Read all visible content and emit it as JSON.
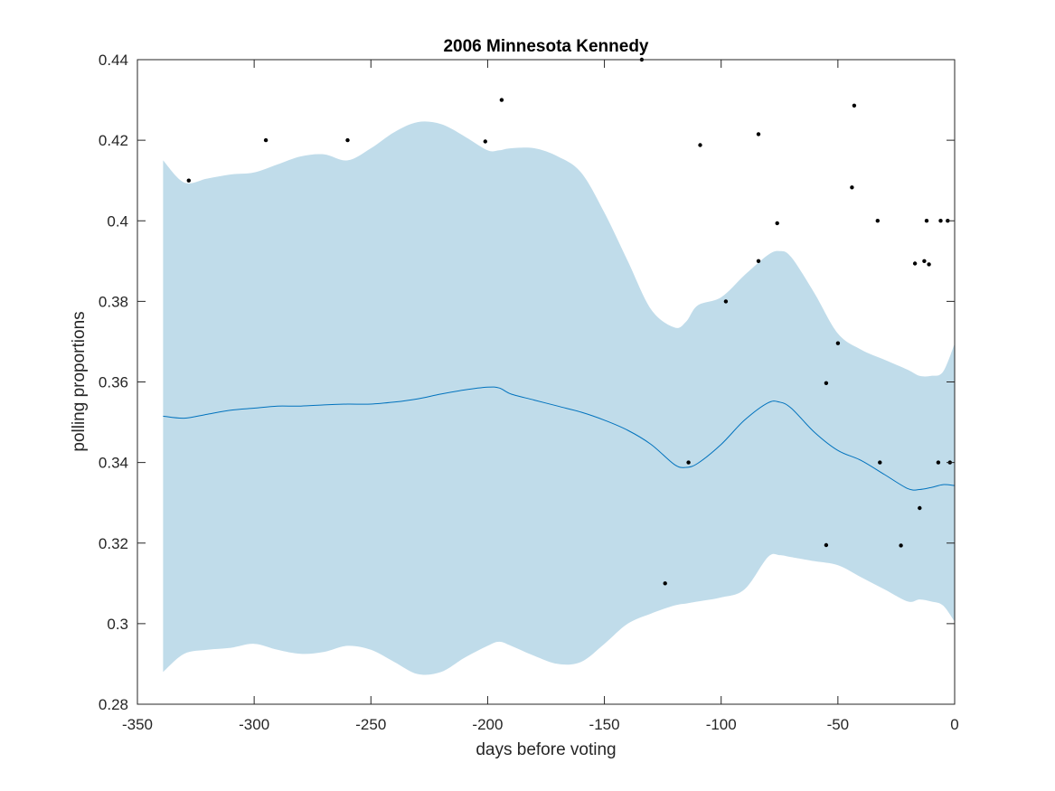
{
  "chart_data": {
    "type": "line",
    "title": "2006 Minnesota Kennedy",
    "xlabel": "days before voting",
    "ylabel": "polling proportions",
    "xlim": [
      -350,
      0
    ],
    "ylim": [
      0.28,
      0.44
    ],
    "xticks": [
      -350,
      -300,
      -250,
      -200,
      -150,
      -100,
      -50,
      0
    ],
    "yticks": [
      0.28,
      0.3,
      0.32,
      0.34,
      0.36,
      0.38,
      0.4,
      0.42,
      0.44
    ],
    "xtick_labels": [
      "-350",
      "-300",
      "-250",
      "-200",
      "-150",
      "-100",
      "-50",
      "0"
    ],
    "ytick_labels": [
      "0.28",
      "0.3",
      "0.32",
      "0.34",
      "0.36",
      "0.38",
      "0.4",
      "0.42",
      "0.44"
    ],
    "grid": false,
    "colors": {
      "band": "#c0dcea",
      "mean": "#0072bd",
      "points": "#000000",
      "axes": "#262626"
    },
    "band": {
      "x": [
        -339,
        -330,
        -320,
        -310,
        -300,
        -290,
        -280,
        -270,
        -260,
        -250,
        -240,
        -230,
        -220,
        -210,
        -200,
        -195,
        -190,
        -180,
        -170,
        -160,
        -150,
        -140,
        -130,
        -120,
        -115,
        -110,
        -100,
        -90,
        -80,
        -75,
        -70,
        -60,
        -50,
        -40,
        -30,
        -20,
        -15,
        -10,
        -5,
        0
      ],
      "upper": [
        0.415,
        0.4095,
        0.4105,
        0.4115,
        0.412,
        0.414,
        0.416,
        0.4165,
        0.415,
        0.418,
        0.422,
        0.4245,
        0.424,
        0.421,
        0.4175,
        0.4175,
        0.418,
        0.418,
        0.416,
        0.412,
        0.402,
        0.39,
        0.378,
        0.3735,
        0.375,
        0.379,
        0.381,
        0.3865,
        0.3915,
        0.3925,
        0.391,
        0.382,
        0.372,
        0.368,
        0.3655,
        0.363,
        0.3615,
        0.3615,
        0.3625,
        0.3695
      ],
      "lower": [
        0.288,
        0.2925,
        0.2935,
        0.294,
        0.295,
        0.2935,
        0.2925,
        0.293,
        0.2945,
        0.2935,
        0.2905,
        0.2875,
        0.288,
        0.2915,
        0.2945,
        0.2955,
        0.2945,
        0.292,
        0.29,
        0.2905,
        0.295,
        0.3,
        0.3025,
        0.3045,
        0.305,
        0.3055,
        0.3065,
        0.3085,
        0.3165,
        0.317,
        0.3165,
        0.3155,
        0.3145,
        0.3115,
        0.3085,
        0.3055,
        0.306,
        0.3055,
        0.3045,
        0.3005
      ]
    },
    "series": [
      {
        "x": [
          -339,
          -330,
          -320,
          -310,
          -300,
          -290,
          -280,
          -270,
          -260,
          -250,
          -240,
          -230,
          -220,
          -210,
          -200,
          -195,
          -190,
          -180,
          -170,
          -160,
          -150,
          -140,
          -130,
          -120,
          -115,
          -110,
          -100,
          -90,
          -80,
          -75,
          -70,
          -60,
          -50,
          -40,
          -30,
          -20,
          -15,
          -10,
          -5,
          0
        ],
        "y": [
          0.3515,
          0.351,
          0.352,
          0.353,
          0.3535,
          0.354,
          0.354,
          0.3543,
          0.3545,
          0.3545,
          0.355,
          0.3558,
          0.357,
          0.358,
          0.3587,
          0.3585,
          0.357,
          0.3555,
          0.354,
          0.3525,
          0.3505,
          0.348,
          0.3445,
          0.3395,
          0.3388,
          0.3398,
          0.3445,
          0.3505,
          0.3548,
          0.355,
          0.3535,
          0.3475,
          0.343,
          0.3405,
          0.337,
          0.3335,
          0.3333,
          0.3338,
          0.3345,
          0.3343
        ]
      }
    ],
    "points": [
      {
        "x": -328,
        "y": 0.41
      },
      {
        "x": -295,
        "y": 0.42
      },
      {
        "x": -260,
        "y": 0.42
      },
      {
        "x": -201,
        "y": 0.4197
      },
      {
        "x": -194,
        "y": 0.43
      },
      {
        "x": -134,
        "y": 0.44
      },
      {
        "x": -109,
        "y": 0.4188
      },
      {
        "x": -84,
        "y": 0.4215
      },
      {
        "x": -76,
        "y": 0.3994
      },
      {
        "x": -84,
        "y": 0.39
      },
      {
        "x": -98,
        "y": 0.38
      },
      {
        "x": -43,
        "y": 0.4286
      },
      {
        "x": -44,
        "y": 0.4083
      },
      {
        "x": -33,
        "y": 0.4
      },
      {
        "x": -12,
        "y": 0.4
      },
      {
        "x": -6,
        "y": 0.4
      },
      {
        "x": -3,
        "y": 0.4
      },
      {
        "x": -17,
        "y": 0.3894
      },
      {
        "x": -13,
        "y": 0.39
      },
      {
        "x": -11,
        "y": 0.3892
      },
      {
        "x": -50,
        "y": 0.3696
      },
      {
        "x": -55,
        "y": 0.3597
      },
      {
        "x": -114,
        "y": 0.34
      },
      {
        "x": -32,
        "y": 0.34
      },
      {
        "x": -7,
        "y": 0.34
      },
      {
        "x": -2,
        "y": 0.34
      },
      {
        "x": -15,
        "y": 0.3287
      },
      {
        "x": -55,
        "y": 0.3195
      },
      {
        "x": -23,
        "y": 0.3194
      },
      {
        "x": -124,
        "y": 0.31
      }
    ]
  }
}
